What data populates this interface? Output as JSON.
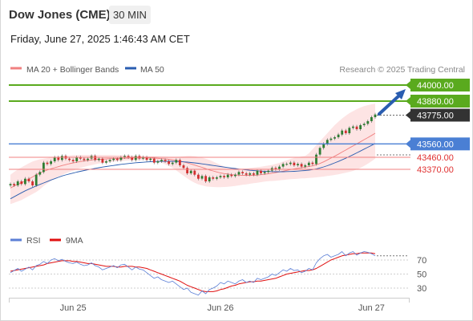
{
  "header": {
    "title": "Dow Jones (CME)",
    "timeframe": "30 MIN",
    "datetime": "Friday, June 27, 2025 1:46:43 AM CET"
  },
  "legend": {
    "ma20_label": "MA 20 + Bollinger Bands",
    "ma50_label": "MA 50",
    "credit": "Research © 2025 Trading Central"
  },
  "rsi_legend": {
    "rsi_label": "RSI",
    "ma9_label": "9MA"
  },
  "colors": {
    "ma20": "#f08080",
    "ma50": "#2a5db0",
    "bands_fill": "#fde4e4",
    "resistance": "#5aaa1e",
    "pivot": "#4a7fd4",
    "support": "#f08080",
    "support_text": "#e03030",
    "last": "#333333",
    "rsi": "#5b7fd6",
    "ma9": "#e01010",
    "bull": "#2e7d32",
    "bear": "#d32f2f",
    "arrow": "#2a5db0"
  },
  "levels": [
    {
      "label": "44000.00",
      "value": 44000.0,
      "kind": "resistance"
    },
    {
      "label": "43880.00",
      "value": 43880.0,
      "kind": "resistance"
    },
    {
      "label": "43775.00",
      "value": 43775.0,
      "kind": "last"
    },
    {
      "label": "43560.00",
      "value": 43560.0,
      "kind": "pivot"
    },
    {
      "label": "43460.00",
      "value": 43460.0,
      "kind": "support"
    },
    {
      "label": "43370.00",
      "value": 43370.0,
      "kind": "support"
    }
  ],
  "chart_data": {
    "type": "line",
    "y_range": [
      43075,
      44100
    ],
    "price": [
      43260,
      43250,
      43280,
      43260,
      43300,
      43280,
      43250,
      43330,
      43350,
      43420,
      43410,
      43430,
      43460,
      43440,
      43470,
      43450,
      43440,
      43430,
      43460,
      43450,
      43440,
      43450,
      43470,
      43440,
      43450,
      43420,
      43430,
      43440,
      43450,
      43440,
      43460,
      43470,
      43460,
      43440,
      43470,
      43450,
      43460,
      43440,
      43450,
      43420,
      43430,
      43440,
      43430,
      43410,
      43420,
      43440,
      43400,
      43380,
      43340,
      43360,
      43330,
      43300,
      43320,
      43280,
      43310,
      43300,
      43310,
      43320,
      43310,
      43330,
      43320,
      43330,
      43350,
      43340,
      43330,
      43340,
      43330,
      43360,
      43340,
      43350,
      43360,
      43380,
      43370,
      43390,
      43410,
      43410,
      43420,
      43400,
      43410,
      43390,
      43400,
      43420,
      43410,
      43480,
      43530,
      43560,
      43590,
      43600,
      43610,
      43630,
      43660,
      43640,
      43680,
      43690,
      43670,
      43700,
      43710,
      43730,
      43760,
      43780
    ],
    "ma20": [
      43230,
      43245,
      43258,
      43270,
      43282,
      43298,
      43313,
      43330,
      43343,
      43355,
      43365,
      43374,
      43382,
      43390,
      43398,
      43405,
      43412,
      43418,
      43423,
      43428,
      43433,
      43436,
      43440,
      43443,
      43445,
      43446,
      43448,
      43450,
      43450,
      43451,
      43452,
      43453,
      43454,
      43455,
      43455,
      43455,
      43456,
      43456,
      43455,
      43454,
      43452,
      43450,
      43448,
      43445,
      43441,
      43437,
      43432,
      43425,
      43418,
      43410,
      43402,
      43393,
      43385,
      43375,
      43365,
      43358,
      43350,
      43343,
      43338,
      43335,
      43330,
      43328,
      43326,
      43325,
      43325,
      43325,
      43325,
      43327,
      43330,
      43333,
      43337,
      43341,
      43346,
      43351,
      43356,
      43362,
      43368,
      43373,
      43378,
      43382,
      43386,
      43391,
      43396,
      43404,
      43414,
      43426,
      43440,
      43454,
      43468,
      43483,
      43499,
      43514,
      43530,
      43545,
      43560,
      43576,
      43592,
      43607,
      43623,
      43640
    ],
    "ma50": [
      43150,
      43165,
      43180,
      43195,
      43209,
      43222,
      43234,
      43246,
      43257,
      43268,
      43279,
      43290,
      43300,
      43310,
      43320,
      43328,
      43335,
      43342,
      43349,
      43355,
      43361,
      43367,
      43372,
      43377,
      43382,
      43387,
      43391,
      43395,
      43399,
      43403,
      43407,
      43410,
      43413,
      43416,
      43419,
      43421,
      43423,
      43425,
      43427,
      43428,
      43429,
      43430,
      43430,
      43430,
      43430,
      43429,
      43428,
      43426,
      43424,
      43421,
      43418,
      43415,
      43411,
      43407,
      43403,
      43399,
      43395,
      43391,
      43387,
      43383,
      43379,
      43376,
      43372,
      43369,
      43366,
      43363,
      43361,
      43359,
      43357,
      43355,
      43354,
      43353,
      43352,
      43352,
      43352,
      43353,
      43354,
      43355,
      43357,
      43359,
      43361,
      43364,
      43368,
      43373,
      43380,
      43388,
      43397,
      43407,
      43418,
      43429,
      43441,
      43453,
      43466,
      43479,
      43493,
      43507,
      43521,
      43535,
      43549,
      43563
    ],
    "bb_upper": [
      43330,
      43350,
      43368,
      43385,
      43400,
      43415,
      43428,
      43438,
      43445,
      43450,
      43454,
      43458,
      43462,
      43466,
      43470,
      43472,
      43474,
      43476,
      43477,
      43478,
      43478,
      43478,
      43478,
      43478,
      43478,
      43478,
      43478,
      43478,
      43478,
      43477,
      43476,
      43475,
      43474,
      43473,
      43472,
      43471,
      43470,
      43469,
      43468,
      43467,
      43466,
      43465,
      43464,
      43463,
      43462,
      43463,
      43465,
      43468,
      43470,
      43470,
      43468,
      43463,
      43457,
      43450,
      43440,
      43428,
      43415,
      43403,
      43392,
      43385,
      43380,
      43378,
      43377,
      43377,
      43378,
      43380,
      43383,
      43386,
      43390,
      43394,
      43398,
      43403,
      43410,
      43418,
      43428,
      43438,
      43448,
      43456,
      43462,
      43466,
      43470,
      43490,
      43520,
      43550,
      43580,
      43610,
      43640,
      43670,
      43700,
      43725,
      43750,
      43770,
      43790,
      43805,
      43820,
      43832,
      43842,
      43850,
      43856,
      43860
    ],
    "bb_lower": [
      43110,
      43120,
      43130,
      43140,
      43155,
      43170,
      43185,
      43200,
      43220,
      43245,
      43265,
      43285,
      43300,
      43315,
      43328,
      43340,
      43350,
      43360,
      43370,
      43380,
      43388,
      43395,
      43402,
      43408,
      43413,
      43417,
      43421,
      43424,
      43427,
      43430,
      43432,
      43434,
      43436,
      43437,
      43438,
      43438,
      43439,
      43440,
      43440,
      43437,
      43430,
      43420,
      43408,
      43395,
      43380,
      43362,
      43342,
      43322,
      43302,
      43285,
      43270,
      43258,
      43250,
      43243,
      43240,
      43238,
      43237,
      43237,
      43238,
      43240,
      43243,
      43246,
      43250,
      43254,
      43258,
      43262,
      43266,
      43270,
      43274,
      43278,
      43281,
      43283,
      43285,
      43287,
      43290,
      43293,
      43296,
      43298,
      43300,
      43302,
      43303,
      43305,
      43307,
      43310,
      43313,
      43316,
      43320,
      43324,
      43328,
      43333,
      43338,
      43344,
      43350,
      43358,
      43368,
      43380,
      43395,
      43412,
      43430,
      43450
    ],
    "rsi": [
      52,
      55,
      58,
      54,
      57,
      60,
      56,
      62,
      64,
      68,
      65,
      70,
      72,
      69,
      71,
      68,
      66,
      65,
      67,
      64,
      62,
      63,
      66,
      62,
      60,
      56,
      58,
      60,
      62,
      59,
      63,
      64,
      60,
      56,
      60,
      57,
      56,
      52,
      48,
      44,
      46,
      42,
      40,
      38,
      40,
      36,
      32,
      28,
      30,
      24,
      22,
      20,
      26,
      22,
      28,
      30,
      33,
      38,
      36,
      40,
      38,
      36,
      40,
      42,
      38,
      40,
      38,
      44,
      42,
      44,
      46,
      50,
      48,
      52,
      56,
      54,
      58,
      55,
      56,
      52,
      54,
      58,
      56,
      66,
      72,
      76,
      78,
      74,
      76,
      78,
      82,
      76,
      80,
      82,
      77,
      80,
      82,
      81,
      79,
      76
    ],
    "ma9": [
      54,
      55,
      56,
      57,
      58,
      59,
      60,
      61,
      62,
      63,
      65,
      66,
      67,
      68,
      69,
      69,
      69,
      68,
      68,
      67,
      66,
      65,
      65,
      64,
      63,
      62,
      61,
      61,
      61,
      60,
      60,
      61,
      61,
      61,
      60,
      60,
      59,
      58,
      56,
      54,
      52,
      50,
      48,
      46,
      44,
      42,
      40,
      37,
      34,
      32,
      30,
      28,
      26,
      25,
      25,
      25,
      26,
      28,
      29,
      31,
      33,
      34,
      36,
      37,
      38,
      39,
      39,
      40,
      40,
      41,
      42,
      43,
      44,
      46,
      48,
      50,
      51,
      52,
      53,
      54,
      55,
      55,
      56,
      58,
      61,
      64,
      67,
      70,
      72,
      74,
      76,
      77,
      78,
      79,
      79,
      80,
      80,
      80,
      80,
      79
    ],
    "rsi_levels": [
      70,
      50,
      30
    ],
    "rsi_range": [
      10,
      92
    ],
    "x_tick_labels": [
      "Jun 25",
      "Jun 26",
      "Jun 27"
    ]
  }
}
